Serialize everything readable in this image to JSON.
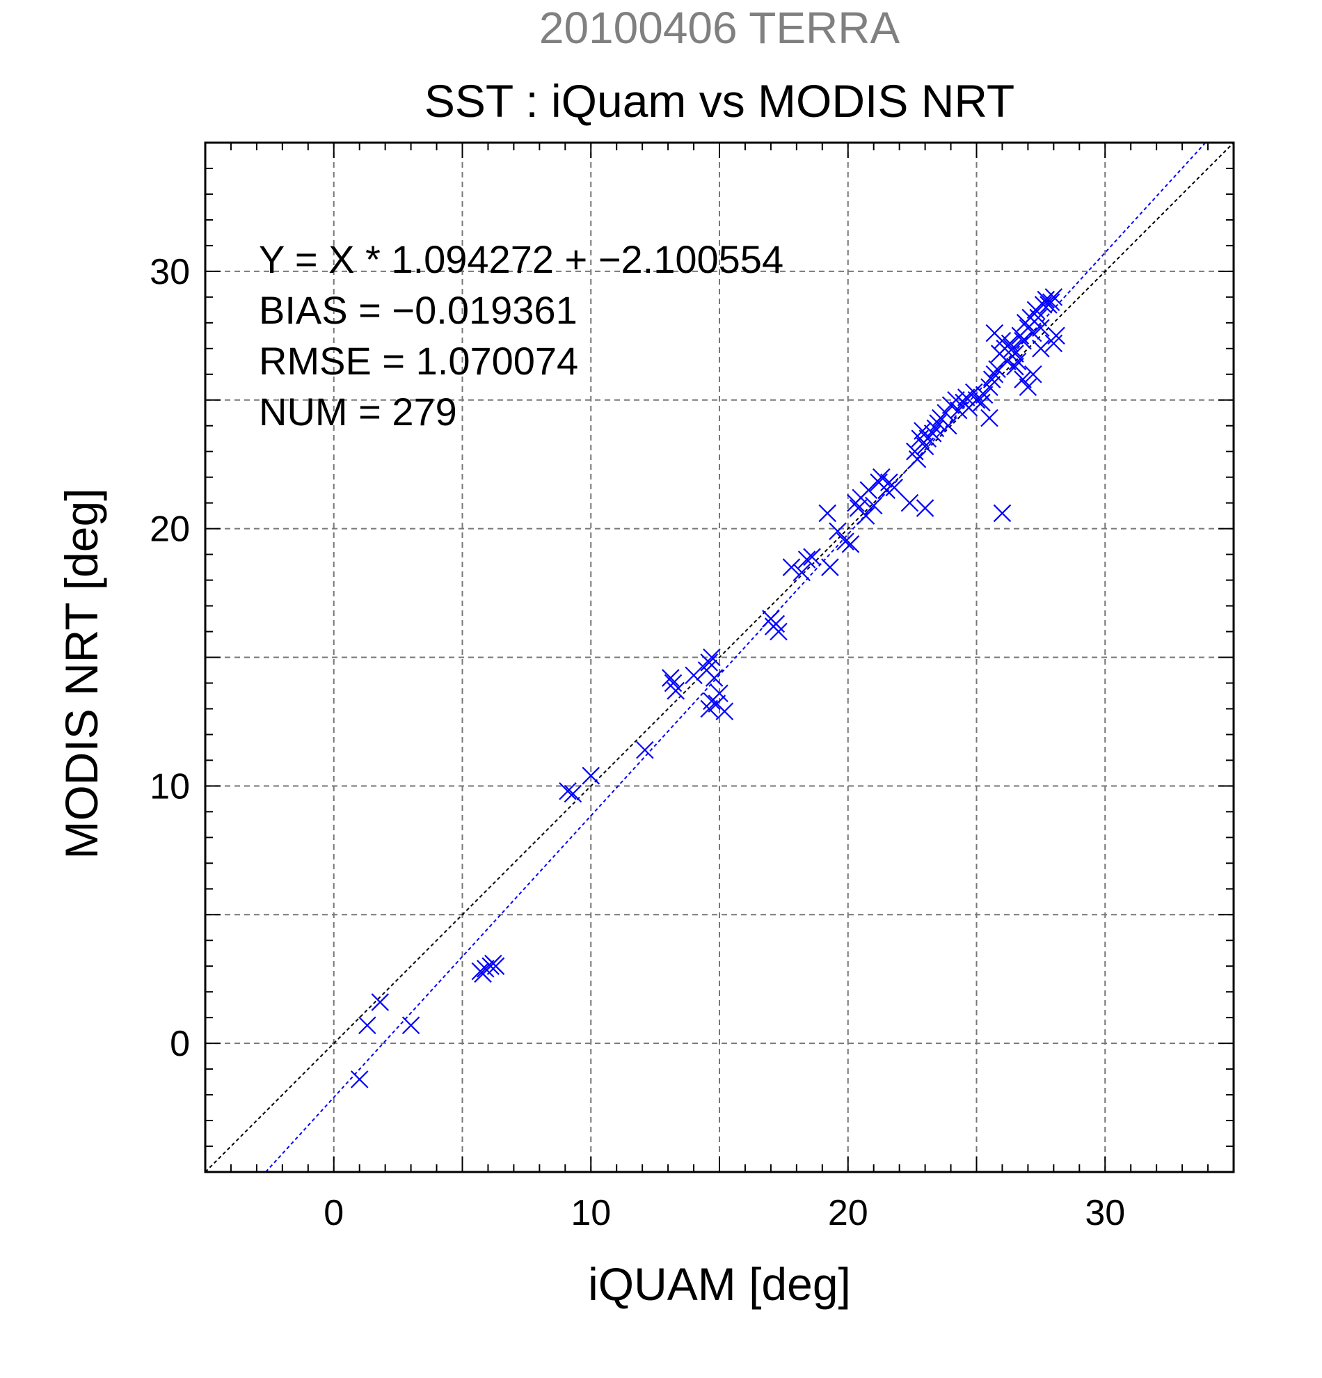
{
  "chart_data": {
    "type": "scatter",
    "title": "SST : iQuam vs MODIS NRT",
    "subtitle": "20100406 TERRA",
    "xlabel": "iQUAM [deg]",
    "ylabel": "MODIS NRT [deg]",
    "xlim": [
      -5,
      35
    ],
    "ylim": [
      -5,
      35
    ],
    "xticks": [
      0,
      10,
      20,
      30
    ],
    "yticks": [
      0,
      10,
      20,
      30
    ],
    "grid": true,
    "annotations": [
      "Y = X * 1.094272 + −2.100554",
      "BIAS = −0.019361",
      "RMSE = 1.070074",
      "NUM = 279"
    ],
    "lines": [
      {
        "kind": "identity",
        "slope": 1.0,
        "intercept": 0.0,
        "color": "#000000"
      },
      {
        "kind": "fit",
        "slope": 1.094272,
        "intercept": -2.100554,
        "color": "#0000ff"
      }
    ],
    "marker_color": "#0000ff",
    "subtitle_color": "#808080",
    "series": [
      {
        "x": [
          1.0,
          1.3,
          1.8,
          3.0,
          5.7,
          5.8,
          5.9,
          6.1,
          6.2,
          6.3,
          9.1,
          9.3,
          10.0,
          12.1,
          13.1,
          13.2,
          13.3,
          14.0,
          14.5,
          14.6,
          14.7,
          14.8,
          14.6,
          14.7,
          15.0,
          14.9,
          15.2,
          17.0,
          17.1,
          17.3,
          17.2,
          17.8,
          18.2,
          18.4,
          18.6,
          19.2,
          19.3,
          19.6,
          19.9,
          20.1,
          20.3,
          20.5,
          20.4,
          20.7,
          20.8,
          21.0,
          21.2,
          21.3,
          21.5,
          21.6,
          21.8,
          22.4,
          23.0,
          22.6,
          22.7,
          22.8,
          22.9,
          23.0,
          23.1,
          23.3,
          23.4,
          23.5,
          23.6,
          23.8,
          23.9,
          24.0,
          24.2,
          24.3,
          24.5,
          24.6,
          24.7,
          24.9,
          25.0,
          25.2,
          25.3,
          25.5,
          25.6,
          25.5,
          25.7,
          25.8,
          25.9,
          26.0,
          26.1,
          26.2,
          26.3,
          26.4,
          26.5,
          26.6,
          26.7,
          26.8,
          26.9,
          27.0,
          27.1,
          27.2,
          27.3,
          27.4,
          27.5,
          27.6,
          27.7,
          27.8,
          27.9,
          28.0,
          28.1,
          27.0,
          27.2,
          26.8,
          26.0,
          25.7,
          28.0,
          27.5,
          26.5
        ],
        "y": [
          -1.4,
          0.7,
          1.6,
          0.7,
          2.8,
          2.7,
          2.9,
          3.0,
          3.1,
          3.0,
          9.8,
          9.7,
          10.4,
          11.4,
          14.2,
          14.0,
          13.7,
          14.3,
          14.5,
          14.8,
          15.0,
          14.2,
          13.0,
          13.3,
          13.6,
          13.2,
          12.9,
          16.5,
          16.2,
          16.0,
          16.3,
          18.5,
          18.3,
          18.8,
          18.9,
          20.6,
          18.5,
          19.9,
          19.5,
          19.4,
          21.0,
          21.2,
          20.8,
          20.5,
          21.5,
          20.9,
          21.8,
          22.0,
          21.5,
          21.8,
          21.6,
          21.0,
          20.8,
          23.0,
          22.7,
          23.5,
          23.8,
          23.2,
          23.5,
          23.7,
          23.9,
          24.1,
          24.3,
          24.5,
          24.0,
          24.8,
          25.0,
          24.6,
          24.9,
          25.1,
          24.7,
          25.3,
          25.0,
          24.9,
          25.2,
          25.5,
          25.8,
          24.3,
          26.0,
          26.2,
          26.8,
          27.3,
          27.0,
          26.5,
          27.2,
          27.0,
          26.8,
          26.5,
          27.5,
          27.3,
          28.0,
          27.8,
          28.2,
          27.6,
          28.5,
          28.2,
          27.8,
          28.7,
          28.9,
          28.7,
          28.8,
          29.0,
          27.5,
          25.5,
          26.0,
          25.8,
          20.6,
          27.6,
          27.2,
          27.0,
          26.3
        ]
      }
    ]
  }
}
